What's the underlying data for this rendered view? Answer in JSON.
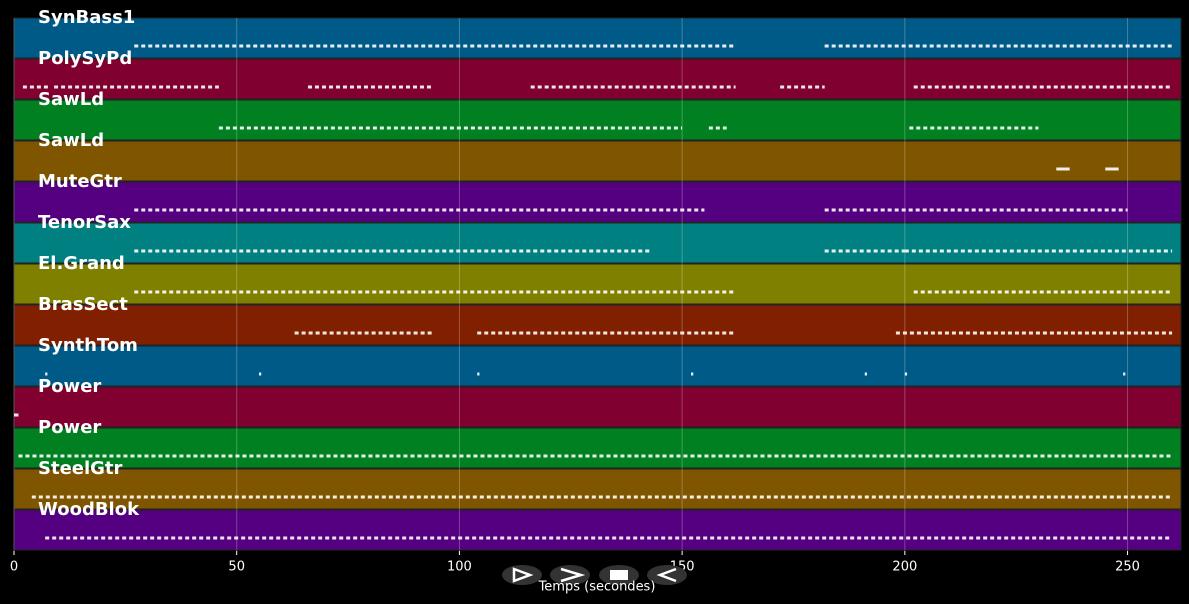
{
  "chart_data": {
    "type": "pianoroll",
    "xlabel": "Temps (secondes)",
    "xlim": [
      0,
      262
    ],
    "xticks": [
      0,
      50,
      100,
      150,
      200,
      250
    ],
    "grid": true,
    "tracks": [
      {
        "name": "SynBass1",
        "color": "#005a87",
        "notes": [
          [
            27,
            162
          ],
          [
            182,
            260
          ]
        ]
      },
      {
        "name": "PolySyPd",
        "color": "#800030",
        "notes": [
          [
            2,
            8
          ],
          [
            9,
            46
          ],
          [
            66,
            94
          ],
          [
            116,
            162
          ],
          [
            172,
            182
          ],
          [
            202,
            260
          ]
        ]
      },
      {
        "name": "SawLd",
        "color": "#008020",
        "notes": [
          [
            46,
            150
          ],
          [
            156,
            160
          ],
          [
            201,
            230
          ]
        ]
      },
      {
        "name": "SawLd",
        "color": "#7f5500",
        "notes": [
          [
            234,
            237
          ],
          [
            245,
            248
          ]
        ]
      },
      {
        "name": "MuteGtr",
        "color": "#550080",
        "notes": [
          [
            27,
            155
          ],
          [
            182,
            250
          ]
        ]
      },
      {
        "name": "TenorSax",
        "color": "#008080",
        "notes": [
          [
            27,
            143
          ],
          [
            182,
            200
          ],
          [
            200,
            260
          ]
        ]
      },
      {
        "name": "El.Grand",
        "color": "#808000",
        "notes": [
          [
            27,
            162
          ],
          [
            202,
            260
          ]
        ]
      },
      {
        "name": "BrasSect",
        "color": "#802000",
        "notes": [
          [
            63,
            94
          ],
          [
            104,
            162
          ],
          [
            198,
            260
          ]
        ]
      },
      {
        "name": "SynthTom",
        "color": "#005a87",
        "notes": [
          [
            7,
            7.5
          ],
          [
            55,
            55.5
          ],
          [
            104,
            104.5
          ],
          [
            152,
            152.5
          ],
          [
            191,
            191.5
          ],
          [
            200,
            200.5
          ],
          [
            249,
            249.5
          ]
        ]
      },
      {
        "name": "Power",
        "color": "#800030",
        "notes": [
          [
            0,
            1
          ]
        ]
      },
      {
        "name": "Power",
        "color": "#008020",
        "notes": [
          [
            1,
            260
          ]
        ]
      },
      {
        "name": "SteelGtr",
        "color": "#7f5500",
        "notes": [
          [
            4,
            260
          ]
        ]
      },
      {
        "name": "WoodBlok",
        "color": "#550080",
        "notes": [
          [
            7,
            260
          ]
        ]
      }
    ]
  }
}
